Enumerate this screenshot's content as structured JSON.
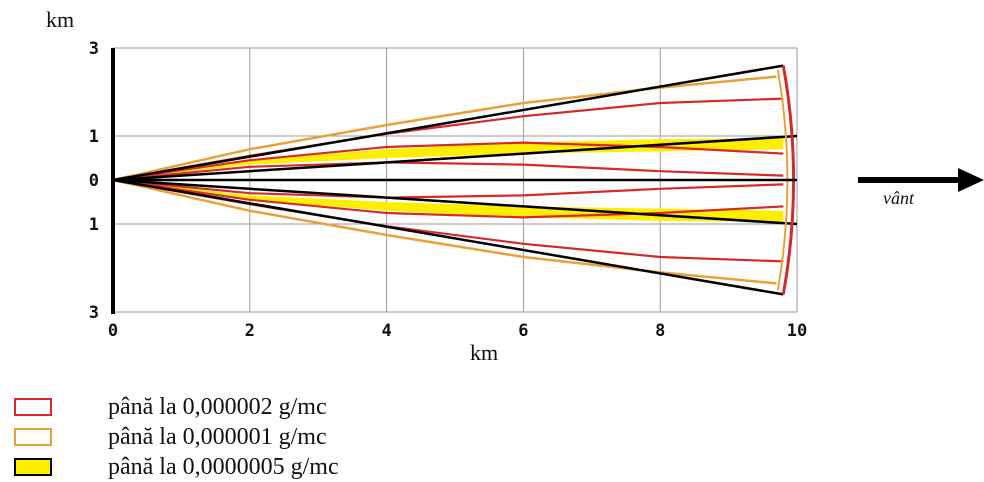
{
  "chart_data": {
    "type": "line",
    "xlabel": "km",
    "ylabel": "km",
    "xlim": [
      0,
      10
    ],
    "ylim": [
      -3,
      3
    ],
    "x_ticks": [
      "0",
      "2",
      "4",
      "6",
      "8",
      "10"
    ],
    "y_ticks": [
      {
        "value": 3,
        "label": "3"
      },
      {
        "value": 1,
        "label": "1"
      },
      {
        "value": 0,
        "label": "0"
      },
      {
        "value": -1,
        "label": "1"
      },
      {
        "value": -3,
        "label": "3"
      }
    ],
    "grid": true,
    "wind_label": "vânt",
    "series": [
      {
        "name": "până la 0,000002 g/mc",
        "color": "#d42a2a"
      },
      {
        "name": "până la 0,000001 g/mc",
        "color": "#e8a23a"
      },
      {
        "name": "până la 0,0000005 g/mc",
        "color": "#ffee00"
      }
    ],
    "envelope_outer": {
      "x": [
        0,
        9.8
      ],
      "y_upper": [
        0,
        2.6
      ],
      "y_lower": [
        0,
        -2.6
      ]
    },
    "envelope_inner": {
      "x": [
        0,
        10
      ],
      "y_upper": [
        0,
        1.0
      ],
      "y_lower": [
        0,
        -1.0
      ]
    },
    "red_contours": [
      {
        "x": [
          0,
          2,
          4,
          6,
          8,
          9.8
        ],
        "y": [
          0,
          0.55,
          1.05,
          1.45,
          1.75,
          1.85
        ]
      },
      {
        "x": [
          0,
          2,
          4,
          6,
          8,
          9.8
        ],
        "y": [
          0,
          0.45,
          0.75,
          0.85,
          0.75,
          0.6
        ]
      },
      {
        "x": [
          0,
          2,
          4,
          6,
          8,
          9.8
        ],
        "y": [
          0,
          0.3,
          0.4,
          0.35,
          0.2,
          0.1
        ]
      },
      {
        "x": [
          0,
          2,
          4,
          6,
          8,
          9.8
        ],
        "y": [
          0,
          -0.3,
          -0.4,
          -0.35,
          -0.2,
          -0.1
        ]
      },
      {
        "x": [
          0,
          2,
          4,
          6,
          8,
          9.8
        ],
        "y": [
          0,
          -0.45,
          -0.75,
          -0.85,
          -0.75,
          -0.6
        ]
      },
      {
        "x": [
          0,
          2,
          4,
          6,
          8,
          9.8
        ],
        "y": [
          0,
          -0.55,
          -1.05,
          -1.45,
          -1.75,
          -1.85
        ]
      }
    ],
    "orange_contours": [
      {
        "x": [
          0,
          2,
          4,
          6,
          8,
          9.7
        ],
        "y": [
          0,
          0.7,
          1.25,
          1.75,
          2.1,
          2.35
        ]
      },
      {
        "x": [
          0,
          2,
          4,
          6,
          8,
          9.7
        ],
        "y": [
          0,
          -0.7,
          -1.25,
          -1.75,
          -2.1,
          -2.35
        ]
      }
    ],
    "yellow_bands": [
      {
        "x": [
          0,
          2,
          4,
          6,
          8,
          9.8
        ],
        "y_outer": [
          0,
          0.45,
          0.7,
          0.85,
          0.93,
          0.95
        ],
        "y_inner": [
          0,
          0.35,
          0.5,
          0.6,
          0.65,
          0.7
        ]
      },
      {
        "x": [
          0,
          2,
          4,
          6,
          8,
          9.8
        ],
        "y_outer": [
          0,
          -0.45,
          -0.7,
          -0.85,
          -0.93,
          -0.95
        ],
        "y_inner": [
          0,
          -0.35,
          -0.5,
          -0.6,
          -0.65,
          -0.7
        ]
      }
    ]
  }
}
